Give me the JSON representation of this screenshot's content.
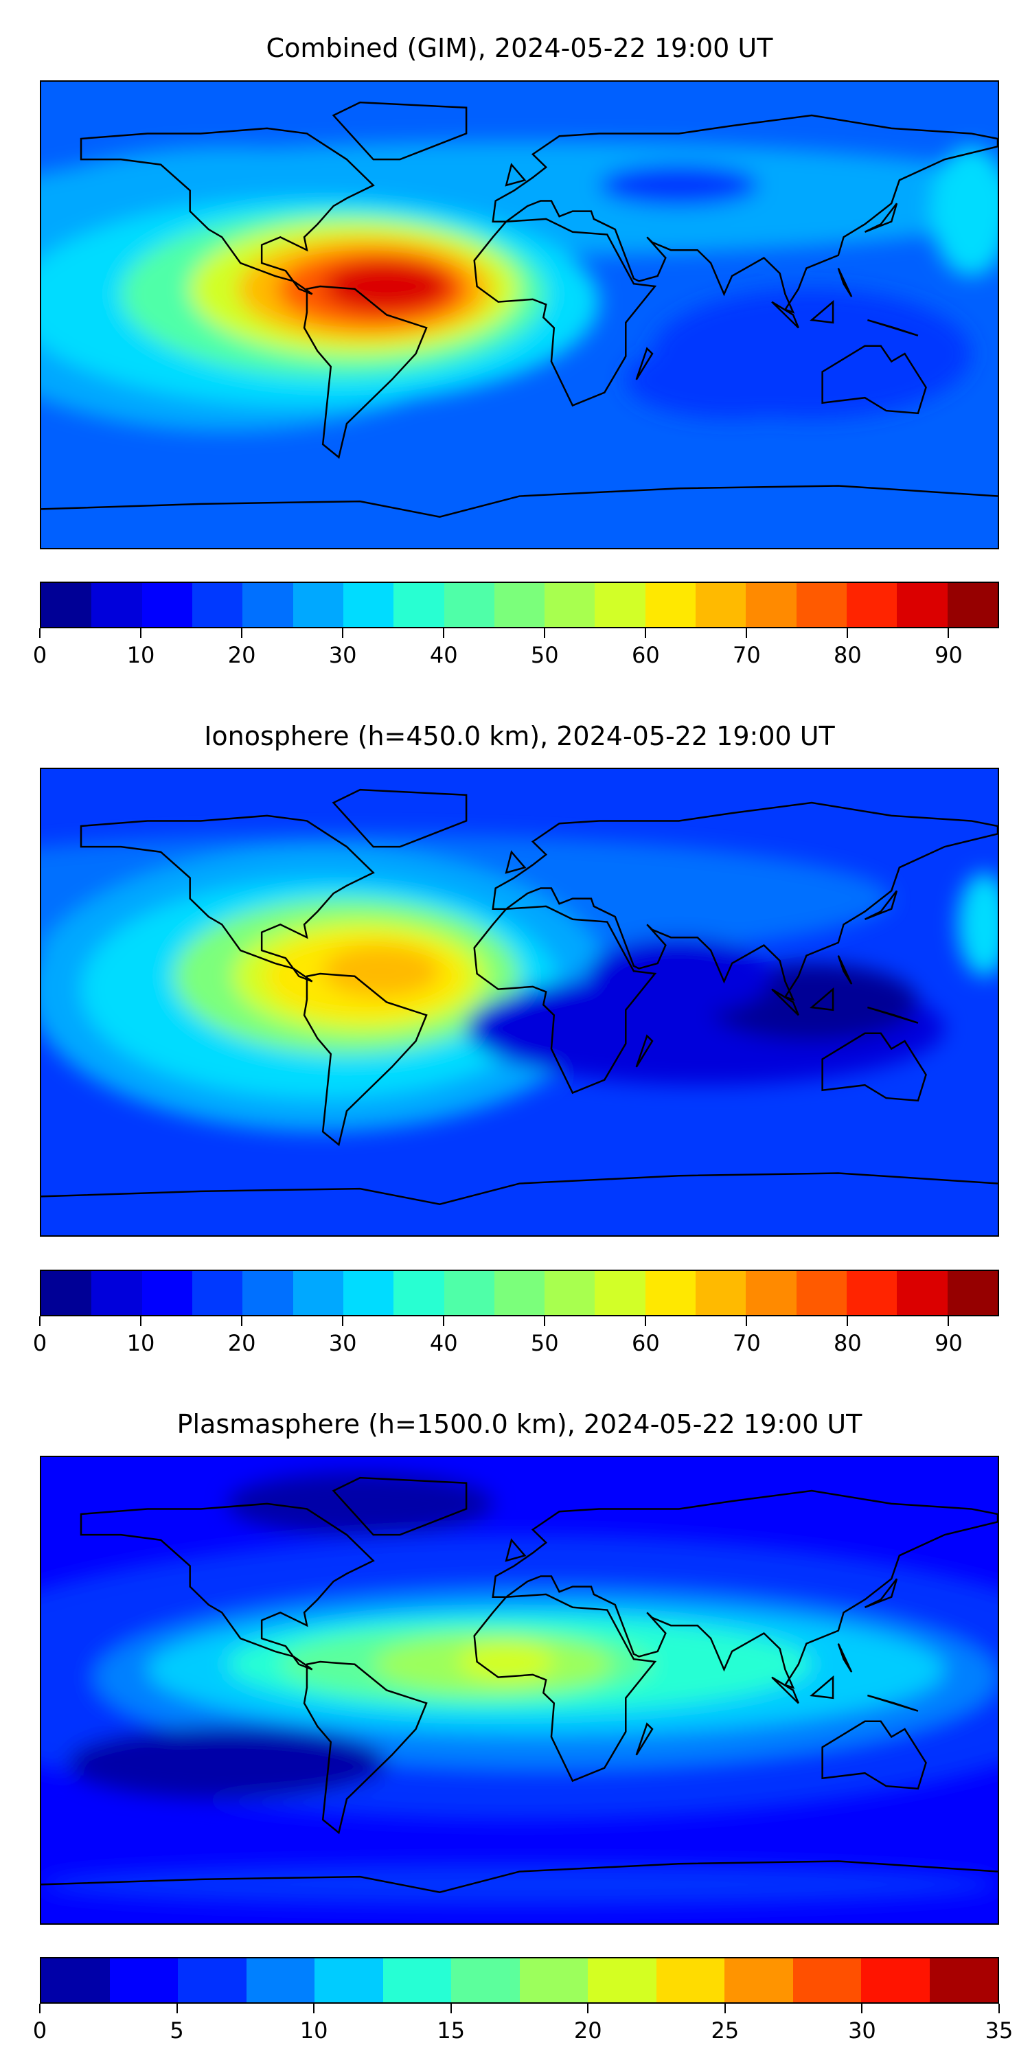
{
  "chart_data": [
    {
      "type": "heatmap",
      "title": "Combined (GIM), 2024-05-22 19:00 UT",
      "colorbar": {
        "range": [
          0,
          95
        ],
        "step": 5,
        "ticks": [
          0,
          10,
          20,
          30,
          40,
          50,
          60,
          70,
          80,
          90
        ],
        "colors": [
          "#000096",
          "#0000db",
          "#0000ff",
          "#0039ff",
          "#0070ff",
          "#00a8ff",
          "#00dcff",
          "#28ffd2",
          "#4fffa8",
          "#7bff7b",
          "#a8ff4f",
          "#d2ff28",
          "#ffe800",
          "#ffba00",
          "#ff8a00",
          "#ff5a00",
          "#ff2400",
          "#db0000",
          "#960000"
        ]
      },
      "peak": {
        "lon": -55,
        "lat": -10,
        "value": 88
      }
    },
    {
      "type": "heatmap",
      "title": "Ionosphere  (h=450.0 km), 2024-05-22 19:00 UT",
      "colorbar": {
        "range": [
          0,
          95
        ],
        "step": 5,
        "ticks": [
          0,
          10,
          20,
          30,
          40,
          50,
          60,
          70,
          80,
          90
        ],
        "colors": [
          "#000096",
          "#0000db",
          "#0000ff",
          "#0039ff",
          "#0070ff",
          "#00a8ff",
          "#00dcff",
          "#28ffd2",
          "#4fffa8",
          "#7bff7b",
          "#a8ff4f",
          "#d2ff28",
          "#ffe800",
          "#ffba00",
          "#ff8a00",
          "#ff5a00",
          "#ff2400",
          "#db0000",
          "#960000"
        ]
      },
      "peak": {
        "lon": -55,
        "lat": -10,
        "value": 68
      }
    },
    {
      "type": "heatmap",
      "title": "Plasmasphere (h=1500.0 km), 2024-05-22 19:00 UT",
      "colorbar": {
        "range": [
          0,
          35
        ],
        "step": 2.5,
        "ticks": [
          0,
          5,
          10,
          15,
          20,
          25,
          30,
          35
        ],
        "colors": [
          "#0000a8",
          "#0000ff",
          "#0030ff",
          "#0080ff",
          "#00ccff",
          "#26ffd4",
          "#5cff9c",
          "#9cff5c",
          "#d4ff22",
          "#ffdc00",
          "#ff9400",
          "#ff5000",
          "#ff1400",
          "#a80000"
        ]
      },
      "peak": {
        "lon": -5,
        "lat": -10,
        "value": 24
      }
    }
  ]
}
